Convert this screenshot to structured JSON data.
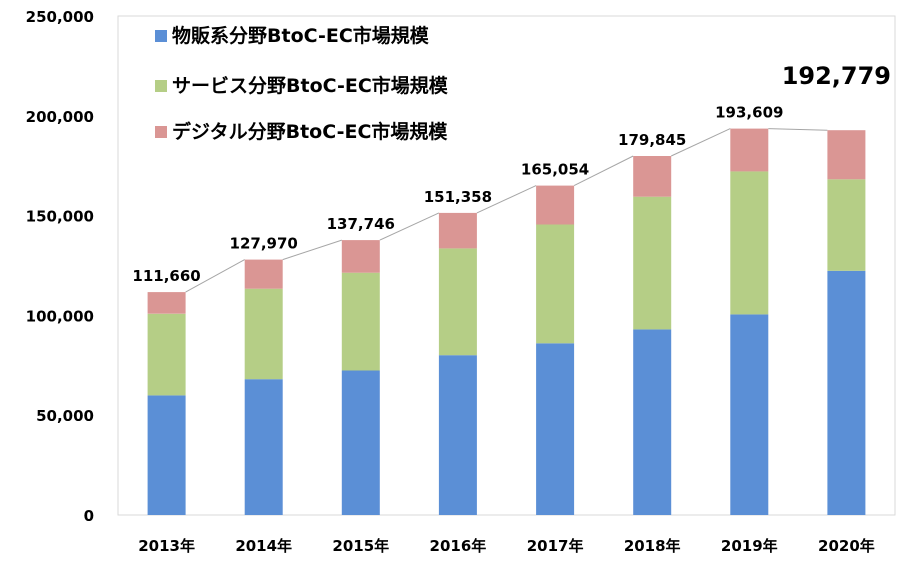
{
  "chart_data": {
    "type": "bar",
    "stacked": true,
    "categories": [
      "2013年",
      "2014年",
      "2015年",
      "2016年",
      "2017年",
      "2018年",
      "2019年",
      "2020年"
    ],
    "series": [
      {
        "name": "物販系分野BtoC-EC市場規模",
        "color": "#5B8FD6",
        "values": [
          59931,
          68043,
          72398,
          80043,
          86008,
          92992,
          100515,
          122333
        ]
      },
      {
        "name": "サービス分野BtoC-EC市場規模",
        "color": "#B5CE86",
        "values": [
          40887,
          45323,
          49014,
          53532,
          59568,
          66471,
          71672,
          45832
        ]
      },
      {
        "name": "デジタル分野BtoC-EC市場規模",
        "color": "#DA9694",
        "values": [
          10842,
          14604,
          16334,
          17783,
          19478,
          20382,
          21422,
          24614
        ]
      }
    ],
    "totals": [
      "111,660",
      "127,970",
      "137,746",
      "151,358",
      "165,054",
      "179,845",
      "193,609",
      "192,779"
    ],
    "y_ticks": [
      "0",
      "50,000",
      "100,000",
      "150,000",
      "200,000",
      "250,000"
    ],
    "ylim": [
      0,
      250000
    ],
    "grid": false,
    "legend_position": "top-left",
    "title": "",
    "xlabel": "",
    "ylabel": ""
  }
}
